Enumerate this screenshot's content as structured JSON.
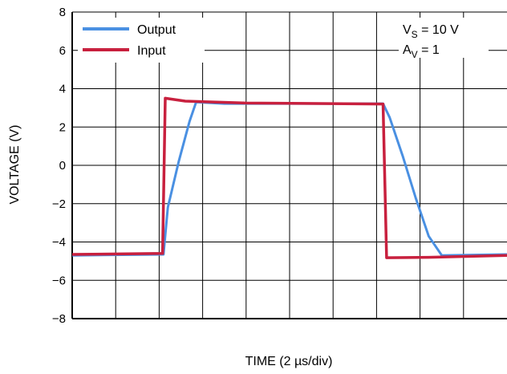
{
  "chart_data": {
    "type": "line",
    "xlabel": "TIME (2 µs/div)",
    "ylabel": "VOLTAGE (V)",
    "xlim": [
      0,
      10
    ],
    "ylim": [
      -8,
      8
    ],
    "yticks": [
      8,
      6,
      4,
      2,
      0,
      -2,
      -4,
      -6,
      -8
    ],
    "ytick_labels": [
      "8",
      "6",
      "4",
      "2",
      "0",
      "−2",
      "−4",
      "−6",
      "−8"
    ],
    "grid": true,
    "legend": "top-left",
    "annotation": {
      "vs_main": "V",
      "vs_sub": "S",
      "vs_rest": " = 10 V",
      "av_main": "A",
      "av_sub": "V",
      "av_rest": " = 1"
    },
    "series": [
      {
        "name": "Output",
        "color": "#4a90e2",
        "points": [
          [
            0,
            -4.7
          ],
          [
            2.1,
            -4.65
          ],
          [
            2.2,
            -2.2
          ],
          [
            2.45,
            0.2
          ],
          [
            2.7,
            2.3
          ],
          [
            2.85,
            3.3
          ],
          [
            3.5,
            3.22
          ],
          [
            6,
            3.22
          ],
          [
            7.15,
            3.22
          ],
          [
            7.3,
            2.5
          ],
          [
            7.6,
            0.5
          ],
          [
            7.9,
            -1.7
          ],
          [
            8.2,
            -3.7
          ],
          [
            8.5,
            -4.7
          ],
          [
            10,
            -4.65
          ]
        ]
      },
      {
        "name": "Input",
        "color": "#c8203e",
        "points": [
          [
            0,
            -4.65
          ],
          [
            2.08,
            -4.6
          ],
          [
            2.14,
            3.5
          ],
          [
            2.6,
            3.35
          ],
          [
            4,
            3.25
          ],
          [
            7.15,
            3.2
          ],
          [
            7.23,
            -4.82
          ],
          [
            8.2,
            -4.8
          ],
          [
            10,
            -4.7
          ]
        ]
      }
    ]
  }
}
